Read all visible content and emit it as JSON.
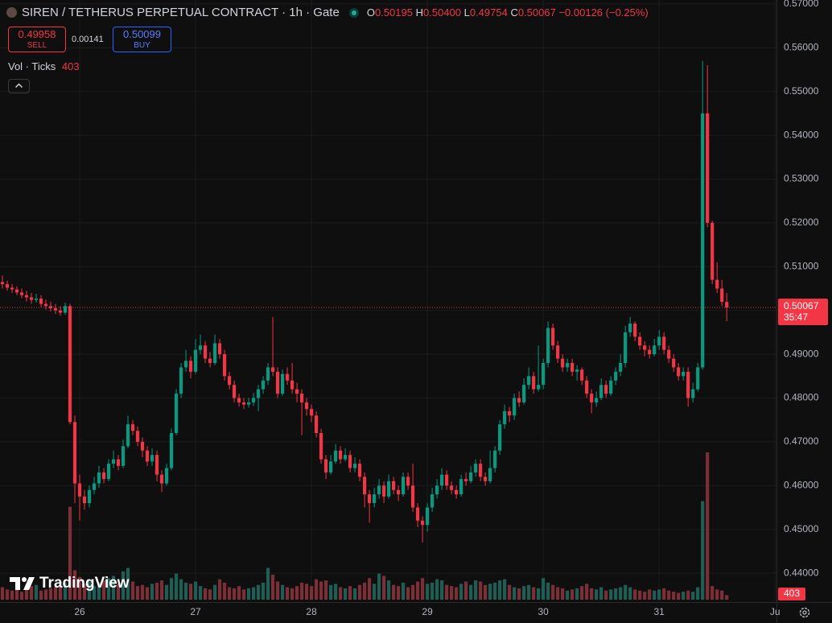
{
  "chart_data": {
    "type": "candlestick",
    "title": "SIREN / TETHERUS PERPETUAL CONTRACT · 1h · Gate",
    "header": {
      "o_label": "O",
      "o": "0.50195",
      "h_label": "H",
      "h": "0.50400",
      "l_label": "L",
      "l": "0.49754",
      "c_label": "C",
      "c": "0.50067",
      "change": "−0.00126 (−0.25%)"
    },
    "sell_price": "0.49958",
    "sell_label": "SELL",
    "spread": "0.00141",
    "buy_price": "0.50099",
    "buy_label": "BUY",
    "volume_title": "Vol · Ticks",
    "countdown": "35:47",
    "brand": "TradingView",
    "up_color": "#089981",
    "down_color": "#f23645",
    "volume_up_color": "#1f5e55",
    "volume_down_color": "#7c2f36",
    "grid": true,
    "ylim": [
      0.4334,
      0.5709
    ],
    "yticks": [
      {
        "value": 0.44,
        "label": "0.44000"
      },
      {
        "value": 0.45,
        "label": "0.45000"
      },
      {
        "value": 0.46,
        "label": "0.46000"
      },
      {
        "value": 0.47,
        "label": "0.47000"
      },
      {
        "value": 0.48,
        "label": "0.48000"
      },
      {
        "value": 0.49,
        "label": "0.49000"
      },
      {
        "value": 0.5,
        "label": "0.50000"
      },
      {
        "value": 0.51,
        "label": "0.51000"
      },
      {
        "value": 0.52,
        "label": "0.52000"
      },
      {
        "value": 0.53,
        "label": "0.53000"
      },
      {
        "value": 0.54,
        "label": "0.54000"
      },
      {
        "value": 0.55,
        "label": "0.55000"
      },
      {
        "value": 0.56,
        "label": "0.56000"
      },
      {
        "value": 0.57,
        "label": "0.57000"
      }
    ],
    "xlim": [
      -0.5,
      160.3
    ],
    "xticks": [
      {
        "value": 16,
        "label": "26"
      },
      {
        "value": 40,
        "label": "27"
      },
      {
        "value": 64,
        "label": "28"
      },
      {
        "value": 88,
        "label": "29"
      },
      {
        "value": 112,
        "label": "30"
      },
      {
        "value": 136,
        "label": "31"
      },
      {
        "value": 160,
        "label": "Ju"
      }
    ],
    "vlim": [
      0,
      13500
    ],
    "open": [
      0.5065,
      0.506,
      0.5052,
      0.5048,
      0.5041,
      0.5035,
      0.503,
      0.5024,
      0.5027,
      0.5015,
      0.501,
      0.5005,
      0.5,
      0.4995,
      0.501,
      0.4745,
      0.4605,
      0.4575,
      0.456,
      0.459,
      0.4605,
      0.463,
      0.4615,
      0.465,
      0.466,
      0.4645,
      0.469,
      0.474,
      0.4725,
      0.47,
      0.468,
      0.4655,
      0.467,
      0.4625,
      0.4605,
      0.464,
      0.472,
      0.481,
      0.487,
      0.4885,
      0.486,
      0.491,
      0.492,
      0.489,
      0.488,
      0.4925,
      0.49,
      0.485,
      0.483,
      0.48,
      0.479,
      0.4785,
      0.479,
      0.48,
      0.482,
      0.484,
      0.487,
      0.486,
      0.481,
      0.4855,
      0.484,
      0.482,
      0.481,
      0.479,
      0.4775,
      0.476,
      0.472,
      0.466,
      0.463,
      0.4655,
      0.468,
      0.466,
      0.467,
      0.464,
      0.465,
      0.462,
      0.458,
      0.456,
      0.458,
      0.46,
      0.4575,
      0.461,
      0.459,
      0.458,
      0.462,
      0.46,
      0.455,
      0.452,
      0.451,
      0.455,
      0.458,
      0.46,
      0.4625,
      0.46,
      0.459,
      0.458,
      0.4615,
      0.461,
      0.463,
      0.465,
      0.462,
      0.461,
      0.464,
      0.468,
      0.474,
      0.477,
      0.476,
      0.48,
      0.479,
      0.483,
      0.485,
      0.482,
      0.483,
      0.488,
      0.496,
      0.492,
      0.489,
      0.487,
      0.488,
      0.486,
      0.4865,
      0.484,
      0.481,
      0.479,
      0.48,
      0.483,
      0.481,
      0.484,
      0.486,
      0.488,
      0.495,
      0.497,
      0.494,
      0.492,
      0.491,
      0.49,
      0.492,
      0.494,
      0.491,
      0.489,
      0.487,
      0.485,
      0.486,
      0.48,
      0.482,
      0.487,
      0.545,
      0.52,
      0.507,
      0.505,
      0.50195
    ],
    "high": [
      0.508,
      0.5068,
      0.506,
      0.5055,
      0.505,
      0.5045,
      0.504,
      0.5038,
      0.5035,
      0.5025,
      0.502,
      0.5015,
      0.501,
      0.5018,
      0.5015,
      0.476,
      0.4625,
      0.459,
      0.46,
      0.462,
      0.4645,
      0.464,
      0.466,
      0.468,
      0.467,
      0.4705,
      0.476,
      0.475,
      0.4735,
      0.471,
      0.469,
      0.4685,
      0.468,
      0.4635,
      0.465,
      0.473,
      0.482,
      0.488,
      0.491,
      0.4895,
      0.4935,
      0.4945,
      0.493,
      0.4905,
      0.4945,
      0.4935,
      0.491,
      0.486,
      0.484,
      0.481,
      0.48,
      0.48,
      0.4812,
      0.483,
      0.485,
      0.488,
      0.4985,
      0.487,
      0.4865,
      0.487,
      0.488,
      0.4835,
      0.482,
      0.48,
      0.4785,
      0.477,
      0.473,
      0.467,
      0.467,
      0.4695,
      0.469,
      0.4685,
      0.468,
      0.4665,
      0.466,
      0.463,
      0.459,
      0.4595,
      0.4615,
      0.461,
      0.4625,
      0.462,
      0.46,
      0.463,
      0.463,
      0.465,
      0.456,
      0.453,
      0.456,
      0.4595,
      0.4615,
      0.464,
      0.4635,
      0.461,
      0.46,
      0.4625,
      0.463,
      0.4645,
      0.466,
      0.466,
      0.463,
      0.468,
      0.469,
      0.475,
      0.4785,
      0.478,
      0.481,
      0.4815,
      0.4845,
      0.487,
      0.486,
      0.492,
      0.489,
      0.4975,
      0.497,
      0.493,
      0.49,
      0.489,
      0.489,
      0.4875,
      0.487,
      0.485,
      0.482,
      0.4815,
      0.4845,
      0.484,
      0.485,
      0.487,
      0.49,
      0.4965,
      0.4985,
      0.4975,
      0.495,
      0.493,
      0.492,
      0.4935,
      0.4955,
      0.495,
      0.492,
      0.49,
      0.488,
      0.487,
      0.487,
      0.4835,
      0.488,
      0.557,
      0.556,
      0.5205,
      0.511,
      0.507,
      0.504
    ],
    "low": [
      0.505,
      0.5045,
      0.504,
      0.5035,
      0.5028,
      0.502,
      0.5015,
      0.5018,
      0.5008,
      0.5002,
      0.4998,
      0.4992,
      0.4988,
      0.499,
      0.474,
      0.456,
      0.452,
      0.4545,
      0.455,
      0.458,
      0.4595,
      0.4605,
      0.461,
      0.464,
      0.4635,
      0.464,
      0.4685,
      0.4715,
      0.469,
      0.4665,
      0.4645,
      0.4645,
      0.461,
      0.4585,
      0.46,
      0.4635,
      0.4715,
      0.48,
      0.486,
      0.4845,
      0.4855,
      0.49,
      0.488,
      0.487,
      0.4875,
      0.489,
      0.484,
      0.482,
      0.479,
      0.478,
      0.4775,
      0.4778,
      0.4782,
      0.477,
      0.481,
      0.483,
      0.485,
      0.48,
      0.4805,
      0.483,
      0.481,
      0.479,
      0.4715,
      0.476,
      0.4745,
      0.471,
      0.465,
      0.4615,
      0.4625,
      0.465,
      0.465,
      0.4655,
      0.463,
      0.463,
      0.461,
      0.455,
      0.4515,
      0.455,
      0.457,
      0.456,
      0.457,
      0.458,
      0.4565,
      0.4575,
      0.459,
      0.454,
      0.4505,
      0.447,
      0.4495,
      0.454,
      0.457,
      0.459,
      0.459,
      0.458,
      0.457,
      0.4575,
      0.46,
      0.4605,
      0.462,
      0.461,
      0.46,
      0.4605,
      0.463,
      0.467,
      0.473,
      0.4745,
      0.475,
      0.478,
      0.4785,
      0.482,
      0.481,
      0.4815,
      0.482,
      0.487,
      0.491,
      0.488,
      0.486,
      0.486,
      0.485,
      0.484,
      0.483,
      0.48,
      0.4765,
      0.478,
      0.4795,
      0.48,
      0.4805,
      0.483,
      0.485,
      0.487,
      0.494,
      0.493,
      0.491,
      0.4895,
      0.489,
      0.4895,
      0.491,
      0.49,
      0.488,
      0.486,
      0.484,
      0.484,
      0.478,
      0.479,
      0.4815,
      0.4865,
      0.519,
      0.506,
      0.504,
      0.501,
      0.49754
    ],
    "close": [
      0.506,
      0.5052,
      0.5048,
      0.5041,
      0.5035,
      0.503,
      0.5024,
      0.5027,
      0.5015,
      0.501,
      0.5005,
      0.5,
      0.4995,
      0.501,
      0.4745,
      0.4605,
      0.4575,
      0.456,
      0.459,
      0.4605,
      0.463,
      0.4615,
      0.465,
      0.466,
      0.4645,
      0.469,
      0.474,
      0.4725,
      0.47,
      0.468,
      0.4655,
      0.467,
      0.4625,
      0.4605,
      0.464,
      0.472,
      0.481,
      0.487,
      0.4885,
      0.486,
      0.491,
      0.492,
      0.489,
      0.488,
      0.4925,
      0.49,
      0.485,
      0.483,
      0.48,
      0.479,
      0.4785,
      0.479,
      0.48,
      0.482,
      0.484,
      0.487,
      0.486,
      0.481,
      0.4855,
      0.484,
      0.482,
      0.481,
      0.479,
      0.4775,
      0.476,
      0.472,
      0.466,
      0.463,
      0.4655,
      0.468,
      0.466,
      0.467,
      0.464,
      0.465,
      0.462,
      0.458,
      0.456,
      0.458,
      0.46,
      0.4575,
      0.461,
      0.459,
      0.458,
      0.462,
      0.46,
      0.455,
      0.452,
      0.451,
      0.455,
      0.458,
      0.46,
      0.4625,
      0.46,
      0.459,
      0.458,
      0.4615,
      0.461,
      0.463,
      0.465,
      0.462,
      0.461,
      0.464,
      0.468,
      0.474,
      0.477,
      0.476,
      0.48,
      0.479,
      0.483,
      0.485,
      0.482,
      0.483,
      0.488,
      0.496,
      0.492,
      0.489,
      0.487,
      0.488,
      0.486,
      0.4865,
      0.484,
      0.481,
      0.479,
      0.48,
      0.483,
      0.481,
      0.484,
      0.486,
      0.488,
      0.495,
      0.497,
      0.494,
      0.492,
      0.491,
      0.49,
      0.492,
      0.494,
      0.491,
      0.489,
      0.487,
      0.485,
      0.486,
      0.48,
      0.482,
      0.487,
      0.545,
      0.52,
      0.507,
      0.505,
      0.50195,
      0.50067
    ],
    "volume": [
      1100,
      900,
      800,
      1000,
      700,
      900,
      1200,
      1300,
      800,
      900,
      1000,
      1100,
      1200,
      1500,
      8200,
      2600,
      2000,
      1400,
      1600,
      1200,
      1500,
      1700,
      1900,
      2100,
      1400,
      2500,
      2800,
      1600,
      1200,
      1300,
      1100,
      1400,
      1500,
      1700,
      1300,
      1900,
      2300,
      1800,
      1500,
      1400,
      1600,
      1200,
      1000,
      900,
      1300,
      1800,
      1500,
      1100,
      1000,
      1200,
      900,
      1000,
      1100,
      1300,
      1500,
      2800,
      2200,
      1600,
      1300,
      1100,
      1000,
      1200,
      1500,
      1400,
      1200,
      1800,
      1600,
      1700,
      1300,
      1400,
      1100,
      1000,
      1200,
      1000,
      1300,
      1500,
      1900,
      1400,
      2300,
      2100,
      1700,
      1300,
      1200,
      1500,
      1100,
      1300,
      1600,
      1900,
      1400,
      1500,
      1800,
      1700,
      1300,
      1200,
      1100,
      1400,
      1600,
      1300,
      1700,
      1600,
      1300,
      1400,
      1500,
      1700,
      1800,
      1300,
      1100,
      1000,
      1200,
      1300,
      1100,
      1000,
      1900,
      1500,
      1300,
      1100,
      1000,
      800,
      900,
      1000,
      1200,
      1400,
      1000,
      900,
      1100,
      800,
      900,
      1000,
      1100,
      1300,
      1100,
      900,
      800,
      700,
      900,
      800,
      900,
      1000,
      800,
      700,
      600,
      700,
      800,
      700,
      1100,
      8700,
      13000,
      1200,
      900,
      800,
      403
    ]
  }
}
